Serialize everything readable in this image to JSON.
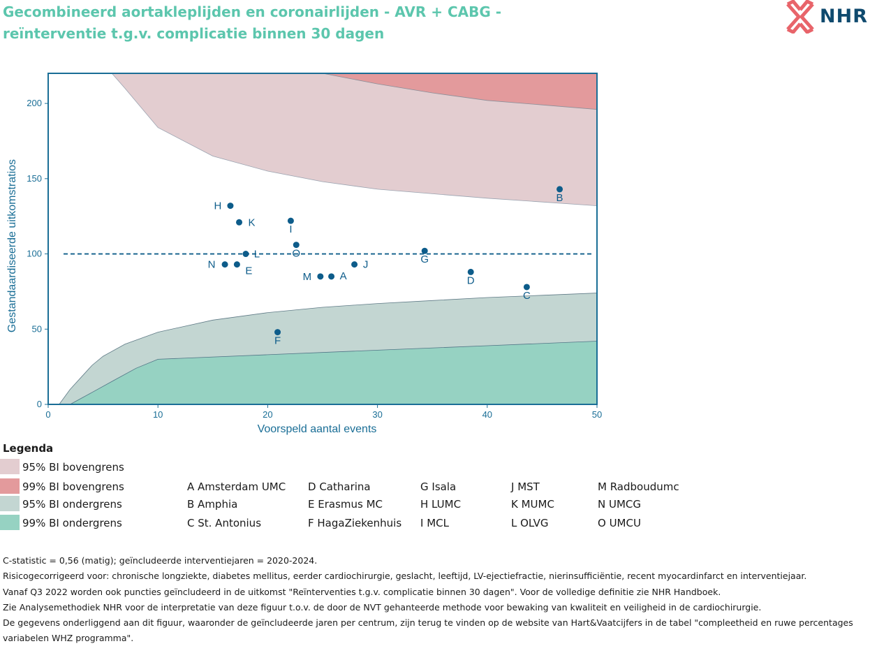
{
  "header": {
    "title_line1": "Gecombineerd aortakleplijden en coronairlijden - AVR + CABG -",
    "title_line2": "reïnterventie t.g.v. complicatie binnen 30 dagen",
    "logo_text": "NHR"
  },
  "colors": {
    "title": "#5cc6ad",
    "axis": "#1a6e96",
    "upper95": "#e3cdd0",
    "upper99": "#e39a9c",
    "lower95": "#c3d6d2",
    "lower99": "#96d2c2",
    "point": "#0d5c8a"
  },
  "chart_data": {
    "type": "scatter",
    "xlabel": "Voorspeld aantal events",
    "ylabel": "Gestandaardiseerde uitkomstratios",
    "xlim": [
      0,
      50
    ],
    "ylim": [
      0,
      220
    ],
    "xticks": [
      0,
      10,
      20,
      30,
      40,
      50
    ],
    "yticks": [
      0,
      50,
      100,
      150,
      200
    ],
    "reference_line": 100,
    "points": [
      {
        "label": "A",
        "x": 25.8,
        "y": 85
      },
      {
        "label": "B",
        "x": 46.6,
        "y": 143
      },
      {
        "label": "C",
        "x": 43.6,
        "y": 78
      },
      {
        "label": "D",
        "x": 38.5,
        "y": 88
      },
      {
        "label": "E",
        "x": 17.2,
        "y": 93
      },
      {
        "label": "F",
        "x": 20.9,
        "y": 48
      },
      {
        "label": "G",
        "x": 34.3,
        "y": 102
      },
      {
        "label": "H",
        "x": 16.6,
        "y": 132
      },
      {
        "label": "I",
        "x": 22.1,
        "y": 122
      },
      {
        "label": "J",
        "x": 27.9,
        "y": 93
      },
      {
        "label": "K",
        "x": 17.4,
        "y": 121
      },
      {
        "label": "L",
        "x": 18.0,
        "y": 100
      },
      {
        "label": "M",
        "x": 24.8,
        "y": 85
      },
      {
        "label": "N",
        "x": 16.1,
        "y": 93
      },
      {
        "label": "O",
        "x": 22.6,
        "y": 106
      }
    ],
    "bands": {
      "upper95": [
        [
          5.8,
          220
        ],
        [
          7,
          210
        ],
        [
          10,
          184
        ],
        [
          15,
          165
        ],
        [
          20,
          155
        ],
        [
          25,
          148
        ],
        [
          30,
          143
        ],
        [
          35,
          140
        ],
        [
          40,
          137
        ],
        [
          45,
          134.5
        ],
        [
          50,
          132
        ]
      ],
      "upper99": [
        [
          25,
          220
        ],
        [
          30,
          213
        ],
        [
          35,
          207
        ],
        [
          40,
          202
        ],
        [
          45,
          199
        ],
        [
          50,
          196
        ]
      ],
      "lower95": [
        [
          1,
          0
        ],
        [
          2,
          10
        ],
        [
          3,
          18
        ],
        [
          4,
          26
        ],
        [
          5,
          32
        ],
        [
          7,
          40
        ],
        [
          10,
          48
        ],
        [
          15,
          56
        ],
        [
          20,
          61
        ],
        [
          25,
          64.5
        ],
        [
          30,
          67
        ],
        [
          35,
          69
        ],
        [
          40,
          71
        ],
        [
          45,
          72.5
        ],
        [
          50,
          74
        ]
      ],
      "lower99": [
        [
          2,
          0
        ],
        [
          3,
          4
        ],
        [
          4,
          8
        ],
        [
          6,
          16
        ],
        [
          8,
          24
        ],
        [
          10,
          30
        ],
        [
          20,
          33
        ],
        [
          30,
          36
        ],
        [
          40,
          39
        ],
        [
          50,
          42
        ]
      ]
    }
  },
  "legend": {
    "title": "Legenda",
    "items": [
      {
        "label": "95% BI bovengrens",
        "color": "#e3cdd0"
      },
      {
        "label": "99% BI bovengrens",
        "color": "#e39a9c"
      },
      {
        "label": "95% BI ondergrens",
        "color": "#c3d6d2"
      },
      {
        "label": "99% BI ondergrens",
        "color": "#96d2c2"
      }
    ],
    "centers": [
      [
        "A Amsterdam UMC",
        "B Amphia",
        "C St. Antonius"
      ],
      [
        "D Catharina",
        "E Erasmus MC",
        "F HagaZiekenhuis"
      ],
      [
        "G Isala",
        "H LUMC",
        "I MCL"
      ],
      [
        "J MST",
        "K MUMC",
        "L OLVG"
      ],
      [
        "M Radboudumc",
        "N UMCG",
        "O UMCU"
      ]
    ]
  },
  "notes": [
    "C-statistic =  0,56 (matig); geïncludeerde interventiejaren = 2020-2024.",
    "Risicogecorrigeerd voor: chronische longziekte, diabetes mellitus, eerder cardiochirurgie, geslacht, leeftijd, LV-ejectiefractie, nierinsufficiëntie, recent myocardinfarct en interventiejaar.",
    "Vanaf Q3 2022 worden ook puncties geïncludeerd in de uitkomst \"Reïnterventies t.g.v. complicatie binnen 30 dagen\". Voor de volledige definitie zie NHR Handboek.",
    "Zie Analysemethodiek NHR voor de interpretatie van deze figuur t.o.v. de door de NVT gehanteerde methode voor bewaking van kwaliteit en veiligheid in de cardiochirurgie.",
    "De gegevens onderliggend aan dit figuur, waaronder de geïncludeerde jaren per centrum, zijn terug te vinden op de website van Hart&Vaatcijfers in de tabel \"compleetheid en ruwe percentages variabelen WHZ programma\"."
  ]
}
